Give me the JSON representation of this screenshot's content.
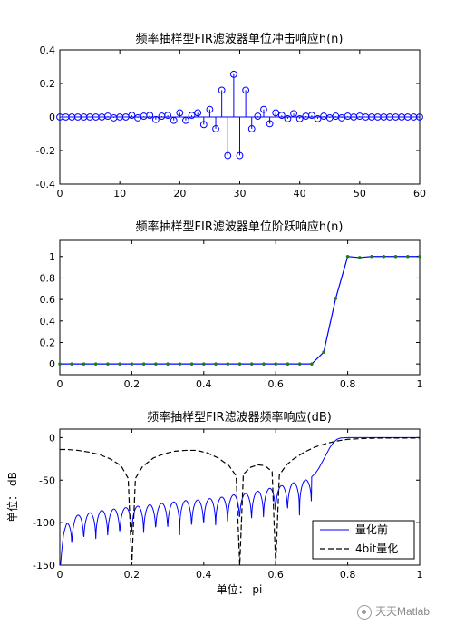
{
  "chart_data": [
    {
      "type": "stem",
      "title": "频率抽样型FIR滤波器单位冲击响应h(n)",
      "xlim": [
        0,
        60
      ],
      "ylim": [
        -0.4,
        0.4
      ],
      "xticks": [
        "0",
        "10",
        "20",
        "30",
        "40",
        "50",
        "60"
      ],
      "yticks": [
        "-0.4",
        "-0.2",
        "0",
        "0.2",
        "0.4"
      ],
      "x": [
        0,
        1,
        2,
        3,
        4,
        5,
        6,
        7,
        8,
        9,
        10,
        11,
        12,
        13,
        14,
        15,
        16,
        17,
        18,
        19,
        20,
        21,
        22,
        23,
        24,
        25,
        26,
        27,
        28,
        29,
        30,
        31,
        32,
        33,
        34,
        35,
        36,
        37,
        38,
        39,
        40,
        41,
        42,
        43,
        44,
        45,
        46,
        47,
        48,
        49,
        50,
        51,
        52,
        53,
        54,
        55,
        56,
        57,
        58,
        59,
        60
      ],
      "values": [
        0,
        0,
        0,
        0,
        0,
        0,
        0,
        0,
        0.005,
        -0.005,
        0,
        0,
        0.01,
        -0.005,
        0.005,
        0.01,
        -0.015,
        0.005,
        0.01,
        -0.02,
        0.025,
        -0.02,
        0.01,
        0.025,
        -0.045,
        0.045,
        -0.07,
        0.16,
        -0.23,
        0.255,
        -0.23,
        0.16,
        -0.07,
        0.005,
        0.045,
        -0.04,
        0.025,
        0.01,
        -0.01,
        0.02,
        -0.01,
        0.005,
        0.01,
        -0.01,
        0.005,
        -0.005,
        0.005,
        -0.005,
        0.005,
        0,
        0.005,
        0,
        0,
        0,
        0,
        0,
        0,
        0,
        0,
        0,
        0
      ]
    },
    {
      "type": "line",
      "title": "频率抽样型FIR滤波器单位阶跃响应h(n)",
      "xlim": [
        0,
        1
      ],
      "ylim": [
        -0.1,
        1.15
      ],
      "xticks": [
        "0",
        "0.2",
        "0.4",
        "0.6",
        "0.8",
        "1"
      ],
      "yticks": [
        "0",
        "0.2",
        "0.4",
        "0.6",
        "0.8",
        "1"
      ],
      "x": [
        0,
        0.0333,
        0.0667,
        0.1,
        0.1333,
        0.1667,
        0.2,
        0.2333,
        0.2667,
        0.3,
        0.3333,
        0.3667,
        0.4,
        0.4333,
        0.4667,
        0.5,
        0.5333,
        0.5667,
        0.6,
        0.6333,
        0.6667,
        0.7,
        0.7333,
        0.7667,
        0.8,
        0.8333,
        0.8667,
        0.9,
        0.9333,
        0.9667,
        1
      ],
      "values": [
        0,
        0,
        0,
        0,
        0,
        0,
        0,
        0,
        0,
        0,
        0,
        0,
        0,
        0,
        0,
        0,
        0,
        0,
        0,
        0,
        0,
        0,
        0.11,
        0.61,
        1.0,
        0.99,
        1.0,
        1.0,
        1.0,
        1.0,
        1.0
      ]
    },
    {
      "type": "line",
      "title": "频率抽样型FIR滤波器频率响应(dB)",
      "xlabel": "单位： pi",
      "ylabel": "单位： dB",
      "xlim": [
        0,
        1
      ],
      "ylim": [
        -150,
        10
      ],
      "xticks": [
        "0",
        "0.2",
        "0.4",
        "0.6",
        "0.8",
        "1"
      ],
      "yticks": [
        "0",
        "-50",
        "-100",
        "-150"
      ],
      "legend": {
        "placement": "bottom-right",
        "entries": [
          "量化前",
          "4bit量化"
        ]
      },
      "series": [
        {
          "name": "量化前",
          "style": "solid",
          "color": "#0000ff",
          "x": [
            0,
            0.01,
            0.02,
            0.03,
            0.045,
            0.06,
            0.075,
            0.09,
            0.11,
            0.13,
            0.15,
            0.17,
            0.19,
            0.21,
            0.23,
            0.25,
            0.27,
            0.29,
            0.31,
            0.33,
            0.35,
            0.37,
            0.39,
            0.41,
            0.43,
            0.45,
            0.47,
            0.49,
            0.51,
            0.53,
            0.55,
            0.57,
            0.59,
            0.61,
            0.63,
            0.65,
            0.67,
            0.69,
            0.7,
            0.71,
            0.72,
            0.73,
            0.74,
            0.75,
            0.76,
            0.77,
            0.78,
            0.8,
            0.85,
            0.9,
            1
          ],
          "envelope": [
            -138,
            -112,
            -100,
            -96,
            -92,
            -90,
            -89,
            -88,
            -86,
            -85,
            -84,
            -83,
            -82,
            -81,
            -80,
            -79,
            -78,
            -77,
            -76,
            -75,
            -74,
            -74,
            -73,
            -72,
            -71,
            -70,
            -68,
            -67,
            -66,
            -65,
            -63,
            -61,
            -59,
            -57,
            -55,
            -53,
            -51,
            -49,
            -46,
            -42,
            -36,
            -28,
            -20,
            -12,
            -6,
            -2,
            -0.5,
            0,
            0,
            0,
            0
          ],
          "lobe_period": 0.0333
        },
        {
          "name": "4bit量化",
          "style": "dashed",
          "color": "#000000",
          "x": [
            0,
            0.02,
            0.05,
            0.08,
            0.11,
            0.14,
            0.17,
            0.19,
            0.2,
            0.21,
            0.23,
            0.26,
            0.29,
            0.32,
            0.35,
            0.38,
            0.41,
            0.44,
            0.47,
            0.49,
            0.5,
            0.51,
            0.53,
            0.55,
            0.57,
            0.59,
            0.6,
            0.61,
            0.63,
            0.65,
            0.68,
            0.71,
            0.74,
            0.77,
            0.8,
            0.85,
            0.9,
            1
          ],
          "values": [
            -14,
            -14,
            -15,
            -17,
            -20,
            -25,
            -33,
            -48,
            -150,
            -48,
            -34,
            -24,
            -19,
            -16,
            -15,
            -15,
            -18,
            -24,
            -33,
            -45,
            -150,
            -43,
            -35,
            -32,
            -33,
            -40,
            -150,
            -44,
            -32,
            -25,
            -17,
            -11,
            -7,
            -4,
            -2,
            -1,
            -0.5,
            -0.5
          ]
        }
      ]
    }
  ],
  "legend": {
    "entry_1": "量化前",
    "entry_2": "4bit量化"
  },
  "watermark": {
    "text": "天天Matlab",
    "icon": "wechat-icon"
  },
  "colors": {
    "blue_series": "#0000ff",
    "markers_green": "#1a7f1a",
    "axes": "#000000"
  }
}
